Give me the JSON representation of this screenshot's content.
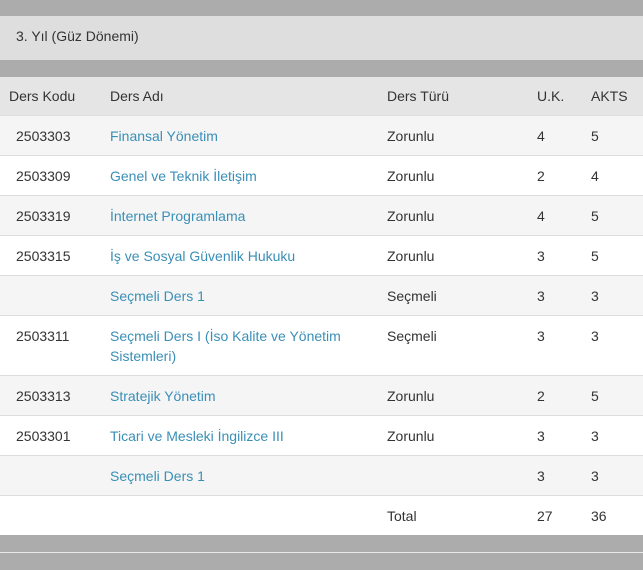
{
  "term": {
    "title": "3. Yıl (Güz Dönemi)"
  },
  "table": {
    "headers": {
      "code": "Ders Kodu",
      "name": "Ders Adı",
      "type": "Ders Türü",
      "uk": "U.K.",
      "akts": "AKTS"
    },
    "rows": [
      {
        "code": "2503303",
        "name": "Finansal Yönetim",
        "type": "Zorunlu",
        "uk": "4",
        "akts": "5"
      },
      {
        "code": "2503309",
        "name": "Genel ve Teknik İletişim",
        "type": "Zorunlu",
        "uk": "2",
        "akts": "4"
      },
      {
        "code": "2503319",
        "name": "İnternet Programlama",
        "type": "Zorunlu",
        "uk": "4",
        "akts": "5"
      },
      {
        "code": "2503315",
        "name": "İş ve Sosyal Güvenlik Hukuku",
        "type": "Zorunlu",
        "uk": "3",
        "akts": "5"
      },
      {
        "code": "",
        "name": "Seçmeli Ders 1",
        "type": "Seçmeli",
        "uk": "3",
        "akts": "3"
      },
      {
        "code": "2503311",
        "name": "Seçmeli Ders I (İso Kalite ve Yönetim Sistemleri)",
        "type": "Seçmeli",
        "uk": "3",
        "akts": "3"
      },
      {
        "code": "2503313",
        "name": "Stratejik Yönetim",
        "type": "Zorunlu",
        "uk": "2",
        "akts": "5"
      },
      {
        "code": "2503301",
        "name": "Ticari ve Mesleki İngilizce III",
        "type": "Zorunlu",
        "uk": "3",
        "akts": "3"
      },
      {
        "code": "",
        "name": "Seçmeli Ders 1",
        "type": "",
        "uk": "3",
        "akts": "3"
      }
    ],
    "total": {
      "label": "Total",
      "uk": "27",
      "akts": "36"
    }
  }
}
